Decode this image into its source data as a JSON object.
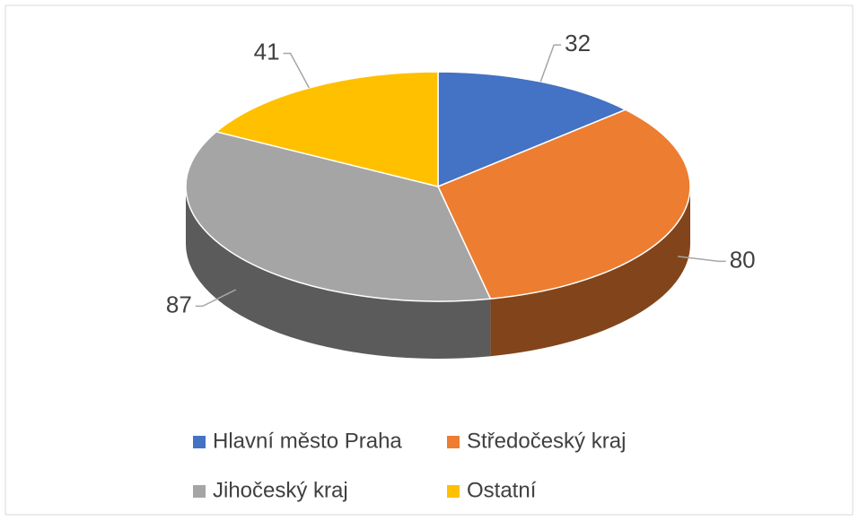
{
  "chart_data": {
    "type": "pie3d",
    "categories": [
      "Hlavní město Praha",
      "Středočeský kraj",
      "Jihočeský kraj",
      "Ostatní"
    ],
    "series": [
      {
        "values": [
          32,
          80,
          87,
          41
        ],
        "colors": [
          "#4472c4",
          "#ed7d31",
          "#a5a5a5",
          "#ffc000"
        ]
      }
    ],
    "legend": "bottom"
  }
}
